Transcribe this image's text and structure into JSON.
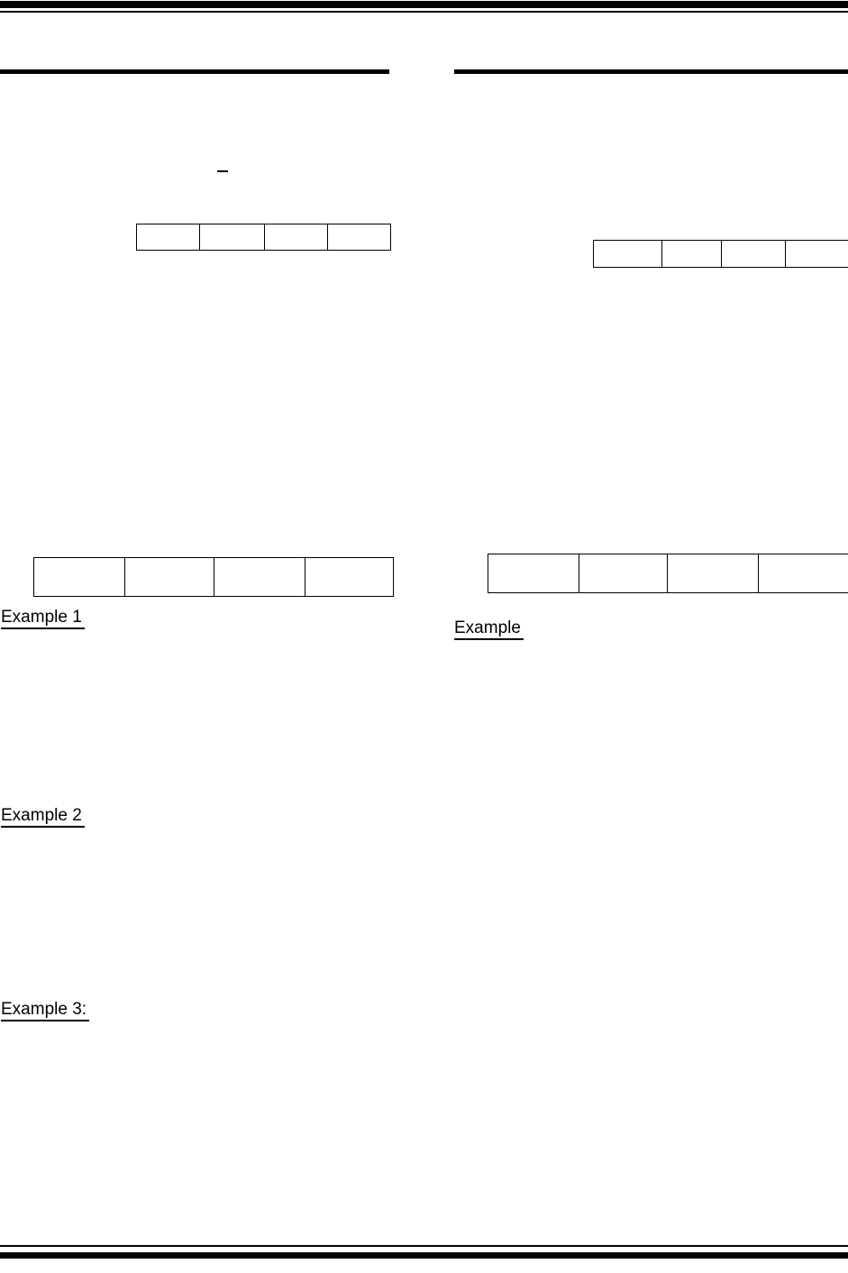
{
  "page": {
    "background_color": "#ffffff",
    "rule_color": "#000000",
    "text_color": "#000000"
  },
  "left_column": {
    "examples": [
      {
        "label": "Example 1"
      },
      {
        "label": "Example 2"
      },
      {
        "label": "Example 3:"
      }
    ],
    "top_table": {
      "cells": [
        "",
        "",
        "",
        ""
      ]
    },
    "mid_table": {
      "cells": [
        "",
        "",
        "",
        ""
      ]
    }
  },
  "right_column": {
    "example_label": "Example",
    "top_table": {
      "cells": [
        "",
        "",
        "",
        ""
      ]
    },
    "mid_table": {
      "cells": [
        "",
        "",
        "",
        ""
      ]
    }
  }
}
